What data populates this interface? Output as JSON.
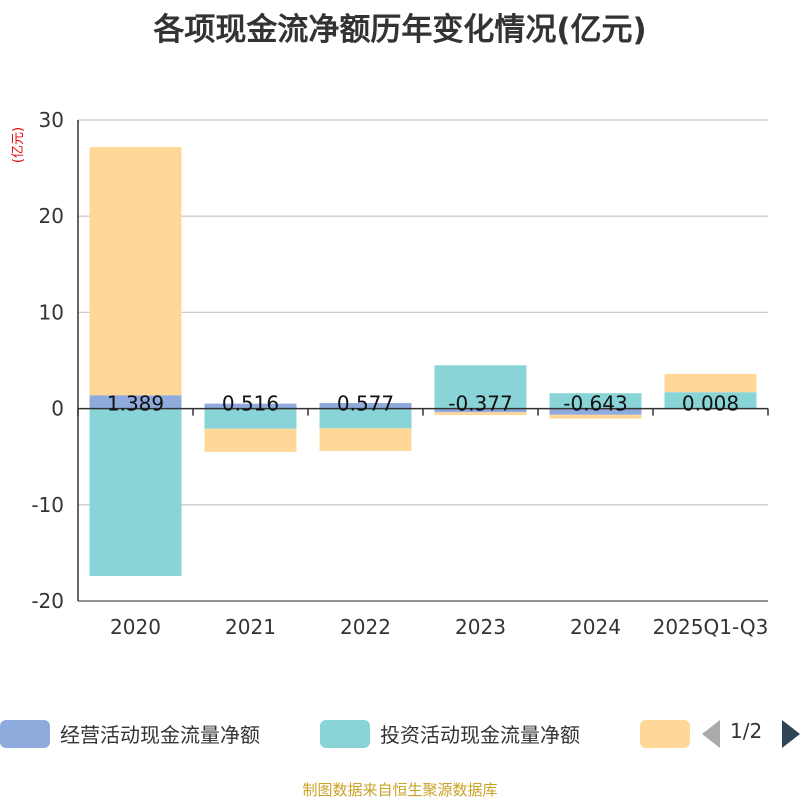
{
  "title": "各项现金流净额历年变化情况(亿元)",
  "footer": "制图数据来自恒生聚源数据库",
  "pager": {
    "text": "1/2"
  },
  "chart_data": {
    "type": "bar",
    "stacked": true,
    "ylabel": "(亿元)",
    "ylim": [
      -20,
      30
    ],
    "yticks": [
      30,
      20,
      10,
      0,
      -10,
      -20
    ],
    "grid": true,
    "legend_position": "bottom",
    "categories": [
      "2020",
      "2021",
      "2022",
      "2023",
      "2024",
      "2025Q1-Q3"
    ],
    "series": [
      {
        "name": "经营活动现金流量净额",
        "color": "#8faadc",
        "values": [
          1.389,
          0.516,
          0.577,
          -0.377,
          -0.643,
          0.008
        ],
        "labels": [
          "1.389",
          "0.516",
          "0.577",
          "-0.377",
          "-0.643",
          "0.008"
        ]
      },
      {
        "name": "投资活动现金流量净额",
        "color": "#88d4d7",
        "values": [
          -17.4,
          -2.1,
          -2.05,
          4.5,
          1.6,
          1.7
        ]
      },
      {
        "name": "",
        "color": "#ffd898",
        "values": [
          25.8,
          -2.4,
          -2.35,
          -0.3,
          -0.4,
          1.9
        ]
      }
    ]
  }
}
